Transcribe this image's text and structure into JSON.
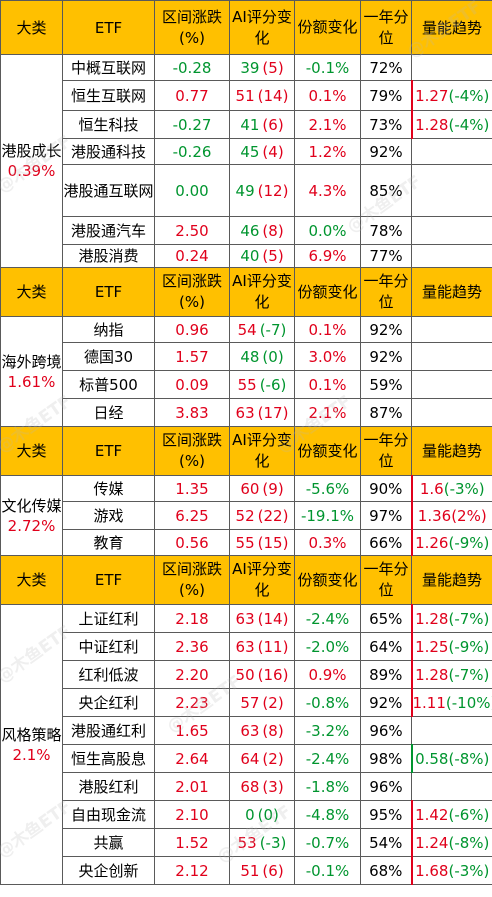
{
  "headers": {
    "category": "大类",
    "etf": "ETF",
    "change_pct": "区间涨跌(%)",
    "ai_score": "AI评分变化",
    "share_change": "份额变化",
    "one_year_pct": "一年分位",
    "volume_trend": "量能趋势"
  },
  "watermark": "@木鱼ETF",
  "sections": [
    {
      "category": "港股成长",
      "category_pct": "0.39%",
      "rows": [
        {
          "etf": "中概互联网",
          "change": "-0.28",
          "ai_score": "39",
          "ai_delta": "(5)",
          "share": "-0.1%",
          "pct": "72%",
          "trend_val": "",
          "trend_delta": ""
        },
        {
          "etf": "恒生互联网",
          "change": "0.77",
          "ai_score": "51",
          "ai_delta": "(14)",
          "share": "0.1%",
          "pct": "79%",
          "trend_val": "1.27",
          "trend_delta": "(-4%)"
        },
        {
          "etf": "恒生科技",
          "change": "-0.27",
          "ai_score": "41",
          "ai_delta": "(6)",
          "share": "2.1%",
          "pct": "73%",
          "trend_val": "1.28",
          "trend_delta": "(-4%)"
        },
        {
          "etf": "港股通科技",
          "change": "-0.26",
          "ai_score": "45",
          "ai_delta": "(4)",
          "share": "1.2%",
          "pct": "92%",
          "trend_val": "",
          "trend_delta": ""
        },
        {
          "etf": "港股通互联网",
          "change": "0.00",
          "ai_score": "49",
          "ai_delta": "(12)",
          "share": "4.3%",
          "pct": "85%",
          "trend_val": "",
          "trend_delta": ""
        },
        {
          "etf": "港股通汽车",
          "change": "2.50",
          "ai_score": "46",
          "ai_delta": "(8)",
          "share": "0.0%",
          "pct": "78%",
          "trend_val": "",
          "trend_delta": ""
        },
        {
          "etf": "港股消费",
          "change": "0.24",
          "ai_score": "40",
          "ai_delta": "(5)",
          "share": "6.9%",
          "pct": "77%",
          "trend_val": "",
          "trend_delta": ""
        }
      ]
    },
    {
      "category": "海外跨境",
      "category_pct": "1.61%",
      "rows": [
        {
          "etf": "纳指",
          "change": "0.96",
          "ai_score": "54",
          "ai_delta": "(-7)",
          "share": "0.1%",
          "pct": "92%",
          "trend_val": "",
          "trend_delta": ""
        },
        {
          "etf": "德国30",
          "change": "1.57",
          "ai_score": "48",
          "ai_delta": "(0)",
          "share": "3.0%",
          "pct": "92%",
          "trend_val": "",
          "trend_delta": ""
        },
        {
          "etf": "标普500",
          "change": "0.09",
          "ai_score": "55",
          "ai_delta": "(-6)",
          "share": "0.1%",
          "pct": "59%",
          "trend_val": "",
          "trend_delta": ""
        },
        {
          "etf": "日经",
          "change": "3.83",
          "ai_score": "63",
          "ai_delta": "(17)",
          "share": "2.1%",
          "pct": "87%",
          "trend_val": "",
          "trend_delta": ""
        }
      ]
    },
    {
      "category": "文化传媒",
      "category_pct": "2.72%",
      "rows": [
        {
          "etf": "传媒",
          "change": "1.35",
          "ai_score": "60",
          "ai_delta": "(9)",
          "share": "-5.6%",
          "pct": "90%",
          "trend_val": "1.6",
          "trend_delta": "(-3%)"
        },
        {
          "etf": "游戏",
          "change": "6.25",
          "ai_score": "52",
          "ai_delta": "(22)",
          "share": "-19.1%",
          "pct": "97%",
          "trend_val": "1.36",
          "trend_delta": "(2%)"
        },
        {
          "etf": "教育",
          "change": "0.56",
          "ai_score": "55",
          "ai_delta": "(15)",
          "share": "0.3%",
          "pct": "66%",
          "trend_val": "1.26",
          "trend_delta": "(-9%)"
        }
      ]
    },
    {
      "category": "风格策略",
      "category_pct": "2.1%",
      "rows": [
        {
          "etf": "上证红利",
          "change": "2.18",
          "ai_score": "63",
          "ai_delta": "(14)",
          "share": "-2.4%",
          "pct": "65%",
          "trend_val": "1.28",
          "trend_delta": "(-7%)"
        },
        {
          "etf": "中证红利",
          "change": "2.36",
          "ai_score": "63",
          "ai_delta": "(11)",
          "share": "-2.0%",
          "pct": "64%",
          "trend_val": "1.25",
          "trend_delta": "(-9%)"
        },
        {
          "etf": "红利低波",
          "change": "2.20",
          "ai_score": "50",
          "ai_delta": "(16)",
          "share": "0.9%",
          "pct": "89%",
          "trend_val": "1.28",
          "trend_delta": "(-7%)"
        },
        {
          "etf": "央企红利",
          "change": "2.23",
          "ai_score": "57",
          "ai_delta": "(2)",
          "share": "-0.8%",
          "pct": "92%",
          "trend_val": "1.11",
          "trend_delta": "(-10%)"
        },
        {
          "etf": "港股通红利",
          "change": "1.65",
          "ai_score": "63",
          "ai_delta": "(8)",
          "share": "-3.2%",
          "pct": "96%",
          "trend_val": "",
          "trend_delta": ""
        },
        {
          "etf": "恒生高股息",
          "change": "2.64",
          "ai_score": "64",
          "ai_delta": "(2)",
          "share": "-2.4%",
          "pct": "98%",
          "trend_val": "0.58",
          "trend_delta": "(-8%)"
        },
        {
          "etf": "港股红利",
          "change": "2.01",
          "ai_score": "68",
          "ai_delta": "(3)",
          "share": "-1.8%",
          "pct": "96%",
          "trend_val": "",
          "trend_delta": ""
        },
        {
          "etf": "自由现金流",
          "change": "2.10",
          "ai_score": "0",
          "ai_delta": "(0)",
          "share": "-4.8%",
          "pct": "95%",
          "trend_val": "1.42",
          "trend_delta": "(-6%)"
        },
        {
          "etf": "共赢",
          "change": "1.52",
          "ai_score": "53",
          "ai_delta": "(-3)",
          "share": "-0.7%",
          "pct": "54%",
          "trend_val": "1.24",
          "trend_delta": "(-8%)"
        },
        {
          "etf": "央企创新",
          "change": "2.12",
          "ai_score": "51",
          "ai_delta": "(6)",
          "share": "-0.1%",
          "pct": "68%",
          "trend_val": "1.68",
          "trend_delta": "(-3%)"
        }
      ]
    }
  ],
  "colors": {
    "header_bg": "#ffc000",
    "positive": "#e0001b",
    "negative": "#00952f",
    "border": "#5a5a5a"
  }
}
